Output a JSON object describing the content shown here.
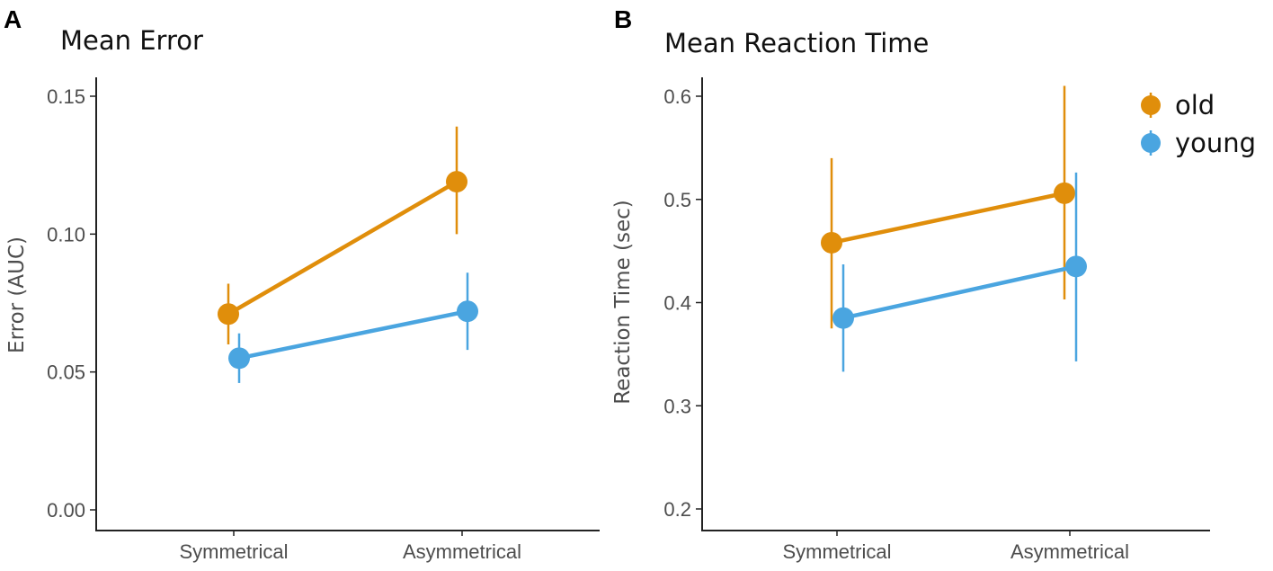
{
  "chart_data": [
    {
      "type": "line",
      "panel_label": "A",
      "title": "Mean Error",
      "xlabel": "",
      "ylabel": "Error (AUC)",
      "categories": [
        "Symmetrical",
        "Asymmetrical"
      ],
      "ylim": [
        -0.007,
        0.157
      ],
      "yticks": [
        0.0,
        0.05,
        0.1,
        0.15
      ],
      "ytick_labels": [
        "0.00",
        "0.05",
        "0.10",
        "0.15"
      ],
      "series": [
        {
          "name": "old",
          "color": "#E08E0B",
          "values": [
            0.071,
            0.119
          ],
          "err_low": [
            0.06,
            0.1
          ],
          "err_high": [
            0.082,
            0.139
          ]
        },
        {
          "name": "young",
          "color": "#4AA5E0",
          "values": [
            0.055,
            0.072
          ],
          "err_low": [
            0.046,
            0.058
          ],
          "err_high": [
            0.064,
            0.086
          ]
        }
      ]
    },
    {
      "type": "line",
      "panel_label": "B",
      "title": "Mean Reaction Time",
      "xlabel": "",
      "ylabel": "Reaction Time (sec)",
      "categories": [
        "Symmetrical",
        "Asymmetrical"
      ],
      "ylim": [
        0.18,
        0.62
      ],
      "yticks": [
        0.2,
        0.3,
        0.4,
        0.5,
        0.6
      ],
      "ytick_labels": [
        "0.2",
        "0.3",
        "0.4",
        "0.5",
        "0.6"
      ],
      "legend_position": "top-right",
      "series": [
        {
          "name": "old",
          "color": "#E08E0B",
          "values": [
            0.458,
            0.506
          ],
          "err_low": [
            0.375,
            0.403
          ],
          "err_high": [
            0.54,
            0.61
          ]
        },
        {
          "name": "young",
          "color": "#4AA5E0",
          "values": [
            0.385,
            0.435
          ],
          "err_low": [
            0.333,
            0.343
          ],
          "err_high": [
            0.437,
            0.526
          ]
        }
      ]
    }
  ],
  "legend": {
    "entries": [
      {
        "label": "old",
        "color": "#E08E0B"
      },
      {
        "label": "young",
        "color": "#4AA5E0"
      }
    ]
  }
}
